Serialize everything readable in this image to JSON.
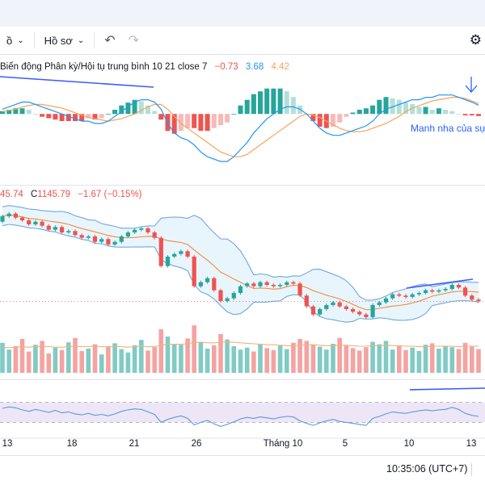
{
  "toolbar": {
    "interval_label": "ồ",
    "profile_label": "Hồ sơ"
  },
  "macd_legend": {
    "name": "Biến động Phân kỳ/Hội tụ trung bình 10 21 close 7",
    "hist": "−0.73",
    "macd": "3.68",
    "signal": "4.42"
  },
  "annotation": "Manh nha của sự",
  "price_legend": {
    "high": "45.74",
    "close_label": "C",
    "close": "1145.79",
    "change": "−1.67 (−0.15%)"
  },
  "clock": "10:35:06 (UTC+7)",
  "colors": {
    "up": "#26a69a",
    "down": "#ef5350",
    "macd_line": "#2196f3",
    "signal_line": "#f7a35c",
    "bb": "#6fa8dc",
    "rsi_line": "#5b9bd5",
    "rsi_band": "#ede6f7",
    "annotation": "#2962ff"
  },
  "chart_data": {
    "type": "candlestick",
    "x_ticks": [
      "13",
      "18",
      "21",
      "26",
      "Tháng 10",
      "5",
      "10",
      "13"
    ],
    "candles": [
      {
        "o": 1205,
        "c": 1209
      },
      {
        "o": 1209,
        "c": 1211
      },
      {
        "o": 1211,
        "c": 1208
      },
      {
        "o": 1208,
        "c": 1206
      },
      {
        "o": 1206,
        "c": 1203
      },
      {
        "o": 1203,
        "c": 1205
      },
      {
        "o": 1205,
        "c": 1202
      },
      {
        "o": 1202,
        "c": 1199
      },
      {
        "o": 1199,
        "c": 1201
      },
      {
        "o": 1201,
        "c": 1197
      },
      {
        "o": 1197,
        "c": 1198
      },
      {
        "o": 1198,
        "c": 1195
      },
      {
        "o": 1195,
        "c": 1193
      },
      {
        "o": 1193,
        "c": 1194
      },
      {
        "o": 1194,
        "c": 1190
      },
      {
        "o": 1190,
        "c": 1192
      },
      {
        "o": 1192,
        "c": 1188
      },
      {
        "o": 1188,
        "c": 1190
      },
      {
        "o": 1190,
        "c": 1194
      },
      {
        "o": 1194,
        "c": 1197
      },
      {
        "o": 1197,
        "c": 1199
      },
      {
        "o": 1199,
        "c": 1200
      },
      {
        "o": 1200,
        "c": 1197
      },
      {
        "o": 1197,
        "c": 1193
      },
      {
        "o": 1193,
        "c": 1172
      },
      {
        "o": 1172,
        "c": 1179
      },
      {
        "o": 1179,
        "c": 1181
      },
      {
        "o": 1181,
        "c": 1183
      },
      {
        "o": 1183,
        "c": 1179
      },
      {
        "o": 1179,
        "c": 1157
      },
      {
        "o": 1157,
        "c": 1160
      },
      {
        "o": 1160,
        "c": 1163
      },
      {
        "o": 1163,
        "c": 1154
      },
      {
        "o": 1154,
        "c": 1146
      },
      {
        "o": 1146,
        "c": 1148
      },
      {
        "o": 1148,
        "c": 1152
      },
      {
        "o": 1152,
        "c": 1157
      },
      {
        "o": 1157,
        "c": 1159
      },
      {
        "o": 1159,
        "c": 1157
      },
      {
        "o": 1157,
        "c": 1160
      },
      {
        "o": 1160,
        "c": 1158
      },
      {
        "o": 1158,
        "c": 1157
      },
      {
        "o": 1157,
        "c": 1158
      },
      {
        "o": 1158,
        "c": 1160
      },
      {
        "o": 1160,
        "c": 1159
      },
      {
        "o": 1159,
        "c": 1150
      },
      {
        "o": 1150,
        "c": 1142
      },
      {
        "o": 1142,
        "c": 1136
      },
      {
        "o": 1136,
        "c": 1140
      },
      {
        "o": 1140,
        "c": 1143
      },
      {
        "o": 1143,
        "c": 1145
      },
      {
        "o": 1145,
        "c": 1142
      },
      {
        "o": 1142,
        "c": 1140
      },
      {
        "o": 1140,
        "c": 1138
      },
      {
        "o": 1138,
        "c": 1136
      },
      {
        "o": 1136,
        "c": 1134
      },
      {
        "o": 1134,
        "c": 1143
      },
      {
        "o": 1143,
        "c": 1145
      },
      {
        "o": 1145,
        "c": 1148
      },
      {
        "o": 1148,
        "c": 1151
      },
      {
        "o": 1151,
        "c": 1150
      },
      {
        "o": 1150,
        "c": 1149
      },
      {
        "o": 1149,
        "c": 1151
      },
      {
        "o": 1151,
        "c": 1152
      },
      {
        "o": 1152,
        "c": 1154
      },
      {
        "o": 1154,
        "c": 1153
      },
      {
        "o": 1153,
        "c": 1154
      },
      {
        "o": 1154,
        "c": 1155
      },
      {
        "o": 1155,
        "c": 1158
      },
      {
        "o": 1158,
        "c": 1156
      },
      {
        "o": 1156,
        "c": 1150
      },
      {
        "o": 1150,
        "c": 1147
      },
      {
        "o": 1147,
        "c": 1145.79
      }
    ],
    "volume": [
      62,
      48,
      55,
      70,
      44,
      58,
      66,
      40,
      52,
      47,
      63,
      72,
      45,
      50,
      59,
      38,
      54,
      61,
      49,
      42,
      57,
      68,
      46,
      53,
      90,
      75,
      60,
      58,
      71,
      98,
      64,
      50,
      57,
      80,
      69,
      55,
      48,
      52,
      44,
      59,
      51,
      47,
      56,
      49,
      62,
      70,
      66,
      58,
      54,
      48,
      60,
      72,
      57,
      51,
      46,
      53,
      64,
      59,
      66,
      48,
      55,
      47,
      52,
      45,
      58,
      61,
      50,
      56,
      53,
      49,
      62,
      54,
      49
    ],
    "volume_sma": [
      52,
      52,
      53,
      54,
      53,
      54,
      55,
      54,
      53,
      53,
      54,
      55,
      54,
      54,
      55,
      54,
      54,
      55,
      54,
      53,
      54,
      55,
      54,
      54,
      57,
      59,
      59,
      59,
      60,
      63,
      63,
      62,
      62,
      63,
      64,
      63,
      62,
      61,
      60,
      59,
      58,
      58,
      57,
      56,
      56,
      57,
      58,
      58,
      57,
      56,
      56,
      57,
      57,
      56,
      55,
      55,
      56,
      56,
      57,
      56,
      56,
      55,
      55,
      54,
      54,
      55,
      55,
      55,
      55,
      54,
      55,
      55,
      55
    ],
    "macd": [
      2,
      3,
      4,
      5,
      5,
      4,
      3,
      2,
      1,
      0,
      -1,
      -2,
      -3,
      -3,
      -4,
      -4,
      -3,
      -1,
      1,
      3,
      5,
      6,
      6,
      5,
      2,
      -4,
      -8,
      -10,
      -11,
      -13,
      -16,
      -18,
      -19,
      -20,
      -20,
      -18,
      -15,
      -12,
      -8,
      -5,
      -2,
      0,
      2,
      3,
      3,
      2,
      0,
      -3,
      -6,
      -8,
      -9,
      -9,
      -8,
      -7,
      -6,
      -5,
      -3,
      0,
      2,
      3,
      4,
      5,
      6,
      6,
      7,
      7,
      8,
      8,
      8,
      7,
      6,
      5,
      3.68
    ],
    "macd_signal": [
      1,
      1.5,
      2,
      3,
      3.5,
      4,
      4,
      3.5,
      3,
      2.5,
      1.5,
      0.5,
      -0.5,
      -1.5,
      -2,
      -2.5,
      -3,
      -2.5,
      -2,
      -1,
      0,
      1.5,
      3,
      4,
      4,
      2,
      -1,
      -4,
      -6,
      -8,
      -10,
      -12,
      -14,
      -16,
      -17,
      -18,
      -18,
      -17,
      -15,
      -13,
      -11,
      -9,
      -7,
      -5,
      -3,
      -1,
      0,
      -0.5,
      -1.5,
      -3,
      -4.5,
      -6,
      -7,
      -7.5,
      -7.5,
      -7,
      -6,
      -5,
      -4,
      -2.5,
      -1,
      1,
      2.5,
      3.5,
      4.5,
      5.5,
      6,
      6.5,
      7,
      7,
      6.5,
      5.5,
      4.42
    ],
    "rsi": [
      58,
      61,
      59,
      55,
      52,
      56,
      53,
      50,
      54,
      49,
      51,
      47,
      45,
      48,
      44,
      46,
      43,
      47,
      52,
      55,
      57,
      56,
      51,
      46,
      30,
      36,
      40,
      43,
      38,
      25,
      30,
      34,
      27,
      22,
      26,
      31,
      37,
      40,
      38,
      41,
      39,
      37,
      40,
      42,
      41,
      33,
      28,
      24,
      29,
      33,
      36,
      32,
      30,
      28,
      26,
      24,
      38,
      42,
      47,
      51,
      49,
      48,
      51,
      53,
      55,
      53,
      55,
      56,
      60,
      56,
      48,
      44,
      42
    ]
  }
}
